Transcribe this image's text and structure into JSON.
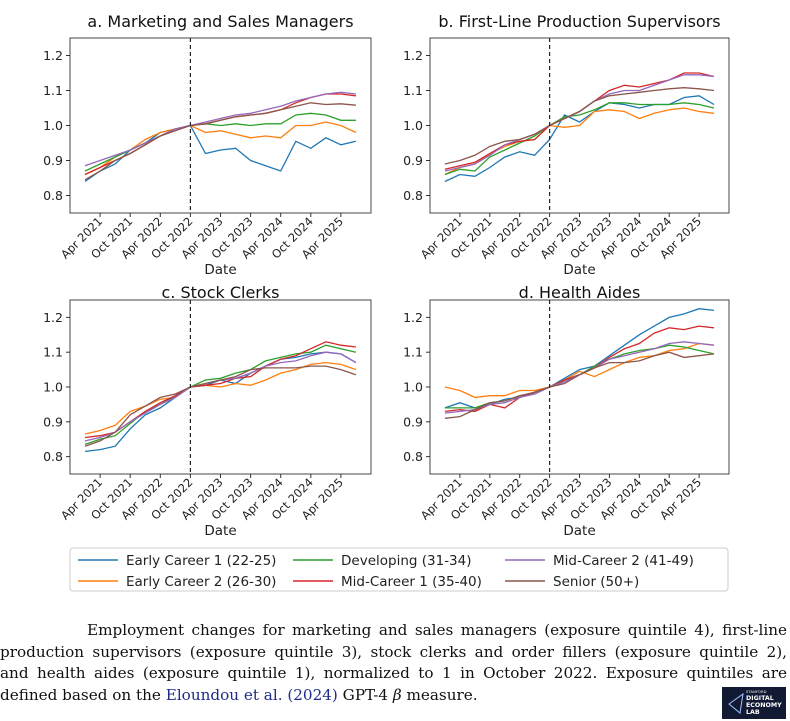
{
  "chart_data": {
    "type": "line",
    "x_unit": "decimal year (quarterly samples, Jan 2021 – Jul 2025)",
    "x": [
      2021.0,
      2021.25,
      2021.5,
      2021.75,
      2022.0,
      2022.25,
      2022.5,
      2022.75,
      2023.0,
      2023.25,
      2023.5,
      2023.75,
      2024.0,
      2024.25,
      2024.5,
      2024.75,
      2025.0,
      2025.25,
      2025.5
    ],
    "xlim": [
      2020.75,
      2025.75
    ],
    "ylim": [
      0.75,
      1.25
    ],
    "xticks": [
      2021.25,
      2021.75,
      2022.25,
      2022.75,
      2023.25,
      2023.75,
      2024.25,
      2024.75,
      2025.25
    ],
    "xtick_labels": [
      "Apr 2021",
      "Oct 2021",
      "Apr 2022",
      "Oct 2022",
      "Apr 2023",
      "Oct 2023",
      "Apr 2024",
      "Oct 2024",
      "Apr 2025"
    ],
    "yticks": [
      0.8,
      0.9,
      1.0,
      1.1,
      1.2
    ],
    "ytick_labels": [
      "0.8",
      "0.9",
      "1.0",
      "1.1",
      "1.2"
    ],
    "xlabel": "Date",
    "reference_line_x": 2022.75,
    "grid": false,
    "legend": {
      "placement": "bottom",
      "entries": [
        {
          "name": "Early Career 1 (22-25)",
          "color": "#1f77b4"
        },
        {
          "name": "Developing (31-34)",
          "color": "#2ca02c"
        },
        {
          "name": "Mid-Career 2 (41-49)",
          "color": "#9467bd"
        },
        {
          "name": "Early Career 2 (26-30)",
          "color": "#ff7f0e"
        },
        {
          "name": "Mid-Career 1 (35-40)",
          "color": "#d62728"
        },
        {
          "name": "Senior (50+)",
          "color": "#8c564b"
        }
      ]
    },
    "panels": [
      {
        "title": "a. Marketing and Sales Managers",
        "series": [
          {
            "name": "Early Career 1 (22-25)",
            "color": "#1f77b4",
            "values": [
              0.84,
              0.87,
              0.89,
              0.93,
              0.95,
              0.98,
              0.99,
              1.0,
              0.92,
              0.93,
              0.935,
              0.9,
              0.885,
              0.87,
              0.955,
              0.935,
              0.965,
              0.945,
              0.955
            ]
          },
          {
            "name": "Early Career 2 (26-30)",
            "color": "#ff7f0e",
            "values": [
              0.86,
              0.88,
              0.91,
              0.93,
              0.96,
              0.98,
              0.99,
              1.0,
              0.98,
              0.985,
              0.975,
              0.965,
              0.97,
              0.965,
              1.0,
              1.0,
              1.01,
              1.0,
              0.98
            ]
          },
          {
            "name": "Developing (31-34)",
            "color": "#2ca02c",
            "values": [
              0.87,
              0.89,
              0.91,
              0.93,
              0.95,
              0.97,
              0.99,
              1.0,
              1.005,
              1.0,
              1.005,
              1.0,
              1.005,
              1.005,
              1.03,
              1.035,
              1.03,
              1.015,
              1.015
            ]
          },
          {
            "name": "Mid-Career 1 (35-40)",
            "color": "#d62728",
            "values": [
              0.86,
              0.88,
              0.9,
              0.92,
              0.945,
              0.97,
              0.99,
              1.0,
              1.005,
              1.015,
              1.025,
              1.03,
              1.035,
              1.045,
              1.065,
              1.08,
              1.09,
              1.09,
              1.085
            ]
          },
          {
            "name": "Mid-Career 2 (41-49)",
            "color": "#9467bd",
            "values": [
              0.885,
              0.9,
              0.915,
              0.93,
              0.95,
              0.97,
              0.99,
              1.0,
              1.01,
              1.02,
              1.03,
              1.035,
              1.045,
              1.055,
              1.07,
              1.08,
              1.09,
              1.095,
              1.09
            ]
          },
          {
            "name": "Senior (50+)",
            "color": "#8c564b",
            "values": [
              0.845,
              0.87,
              0.9,
              0.92,
              0.945,
              0.97,
              0.985,
              1.0,
              1.005,
              1.015,
              1.025,
              1.03,
              1.035,
              1.045,
              1.055,
              1.065,
              1.06,
              1.062,
              1.058
            ]
          }
        ]
      },
      {
        "title": "b. First-Line Production Supervisors",
        "series": [
          {
            "name": "Early Career 1 (22-25)",
            "color": "#1f77b4",
            "values": [
              0.84,
              0.86,
              0.855,
              0.88,
              0.91,
              0.925,
              0.915,
              0.96,
              1.03,
              1.01,
              1.04,
              1.065,
              1.06,
              1.05,
              1.06,
              1.06,
              1.08,
              1.085,
              1.06
            ]
          },
          {
            "name": "Early Career 2 (26-30)",
            "color": "#ff7f0e",
            "values": [
              0.86,
              0.88,
              0.89,
              0.92,
              0.94,
              0.955,
              0.96,
              1.0,
              0.995,
              1.0,
              1.04,
              1.045,
              1.04,
              1.02,
              1.035,
              1.045,
              1.05,
              1.04,
              1.035
            ]
          },
          {
            "name": "Developing (31-34)",
            "color": "#2ca02c",
            "values": [
              0.86,
              0.875,
              0.87,
              0.91,
              0.93,
              0.95,
              0.97,
              1.0,
              1.025,
              1.03,
              1.045,
              1.065,
              1.065,
              1.06,
              1.06,
              1.06,
              1.065,
              1.06,
              1.05
            ]
          },
          {
            "name": "Mid-Career 1 (35-40)",
            "color": "#d62728",
            "values": [
              0.875,
              0.885,
              0.895,
              0.92,
              0.945,
              0.955,
              0.96,
              1.0,
              1.02,
              1.04,
              1.07,
              1.1,
              1.115,
              1.11,
              1.12,
              1.13,
              1.15,
              1.15,
              1.14
            ]
          },
          {
            "name": "Mid-Career 2 (41-49)",
            "color": "#9467bd",
            "values": [
              0.87,
              0.88,
              0.89,
              0.915,
              0.945,
              0.96,
              0.975,
              1.0,
              1.02,
              1.04,
              1.07,
              1.09,
              1.1,
              1.1,
              1.115,
              1.13,
              1.145,
              1.145,
              1.14
            ]
          },
          {
            "name": "Senior (50+)",
            "color": "#8c564b",
            "values": [
              0.89,
              0.9,
              0.915,
              0.94,
              0.955,
              0.96,
              0.975,
              1.0,
              1.02,
              1.04,
              1.07,
              1.085,
              1.09,
              1.095,
              1.1,
              1.105,
              1.108,
              1.105,
              1.1
            ]
          }
        ]
      },
      {
        "title": "c. Stock Clerks",
        "series": [
          {
            "name": "Early Career 1 (22-25)",
            "color": "#1f77b4",
            "values": [
              0.815,
              0.82,
              0.83,
              0.88,
              0.92,
              0.94,
              0.97,
              1.0,
              1.005,
              1.02,
              1.01,
              1.04,
              1.06,
              1.08,
              1.085,
              1.095,
              1.1,
              1.095,
              1.07
            ]
          },
          {
            "name": "Early Career 2 (26-30)",
            "color": "#ff7f0e",
            "values": [
              0.865,
              0.875,
              0.89,
              0.93,
              0.945,
              0.965,
              0.97,
              1.0,
              1.005,
              1.0,
              1.01,
              1.005,
              1.02,
              1.04,
              1.05,
              1.065,
              1.07,
              1.065,
              1.05
            ]
          },
          {
            "name": "Developing (31-34)",
            "color": "#2ca02c",
            "values": [
              0.835,
              0.85,
              0.86,
              0.895,
              0.93,
              0.95,
              0.975,
              1.0,
              1.02,
              1.025,
              1.04,
              1.05,
              1.075,
              1.085,
              1.095,
              1.1,
              1.12,
              1.11,
              1.1
            ]
          },
          {
            "name": "Mid-Career 1 (35-40)",
            "color": "#d62728",
            "values": [
              0.855,
              0.86,
              0.87,
              0.9,
              0.93,
              0.955,
              0.975,
              1.0,
              1.005,
              1.01,
              1.025,
              1.03,
              1.06,
              1.08,
              1.09,
              1.11,
              1.13,
              1.12,
              1.115
            ]
          },
          {
            "name": "Mid-Career 2 (41-49)",
            "color": "#9467bd",
            "values": [
              0.845,
              0.855,
              0.87,
              0.9,
              0.925,
              0.95,
              0.97,
              1.0,
              1.01,
              1.02,
              1.025,
              1.04,
              1.06,
              1.07,
              1.075,
              1.09,
              1.1,
              1.095,
              1.07
            ]
          },
          {
            "name": "Senior (50+)",
            "color": "#8c564b",
            "values": [
              0.83,
              0.845,
              0.87,
              0.92,
              0.945,
              0.97,
              0.98,
              1.0,
              1.01,
              1.02,
              1.03,
              1.05,
              1.055,
              1.055,
              1.055,
              1.06,
              1.06,
              1.05,
              1.035
            ]
          }
        ]
      },
      {
        "title": "d. Health Aides",
        "series": [
          {
            "name": "Early Career 1 (22-25)",
            "color": "#1f77b4",
            "values": [
              0.94,
              0.955,
              0.94,
              0.95,
              0.965,
              0.97,
              0.985,
              1.0,
              1.025,
              1.05,
              1.06,
              1.09,
              1.12,
              1.15,
              1.175,
              1.2,
              1.21,
              1.225,
              1.22
            ]
          },
          {
            "name": "Early Career 2 (26-30)",
            "color": "#ff7f0e",
            "values": [
              1.0,
              0.99,
              0.97,
              0.975,
              0.975,
              0.99,
              0.99,
              1.0,
              1.02,
              1.045,
              1.03,
              1.05,
              1.07,
              1.085,
              1.09,
              1.105,
              1.11,
              1.125,
              1.12
            ]
          },
          {
            "name": "Developing (31-34)",
            "color": "#2ca02c",
            "values": [
              0.94,
              0.94,
              0.94,
              0.955,
              0.96,
              0.975,
              0.98,
              1.0,
              1.02,
              1.035,
              1.06,
              1.08,
              1.095,
              1.105,
              1.11,
              1.12,
              1.115,
              1.105,
              1.095
            ]
          },
          {
            "name": "Mid-Career 1 (35-40)",
            "color": "#d62728",
            "values": [
              0.93,
              0.935,
              0.93,
              0.95,
              0.94,
              0.97,
              0.985,
              1.0,
              1.02,
              1.035,
              1.055,
              1.085,
              1.11,
              1.125,
              1.155,
              1.17,
              1.165,
              1.175,
              1.17
            ]
          },
          {
            "name": "Mid-Career 2 (41-49)",
            "color": "#9467bd",
            "values": [
              0.925,
              0.93,
              0.935,
              0.95,
              0.955,
              0.97,
              0.98,
              1.0,
              1.015,
              1.035,
              1.055,
              1.08,
              1.09,
              1.1,
              1.11,
              1.125,
              1.13,
              1.125,
              1.12
            ]
          },
          {
            "name": "Senior (50+)",
            "color": "#8c564b",
            "values": [
              0.91,
              0.915,
              0.935,
              0.955,
              0.96,
              0.975,
              0.985,
              1.0,
              1.01,
              1.035,
              1.055,
              1.07,
              1.07,
              1.075,
              1.09,
              1.1,
              1.085,
              1.09,
              1.095
            ]
          }
        ]
      }
    ]
  },
  "caption": {
    "line1": "Employment changes for marketing and sales managers (exposure quintile 4), first-line",
    "line2": "production supervisors (exposure quintile 3), stock clerks and order fillers (exposure quintile 2),",
    "line3": "and health aides (exposure quintile 1), normalized to 1 in October 2022.  Exposure quintiles are",
    "line4_pre": "defined based on the ",
    "link": "Eloundou et al. (2024)",
    "line4_mid": " GPT-4 ",
    "beta": "β",
    "line4_post": " measure."
  },
  "logo": {
    "small": "STANFORD",
    "line1": "DIGITAL",
    "line2": "ECONOMY",
    "line3": "LAB"
  }
}
